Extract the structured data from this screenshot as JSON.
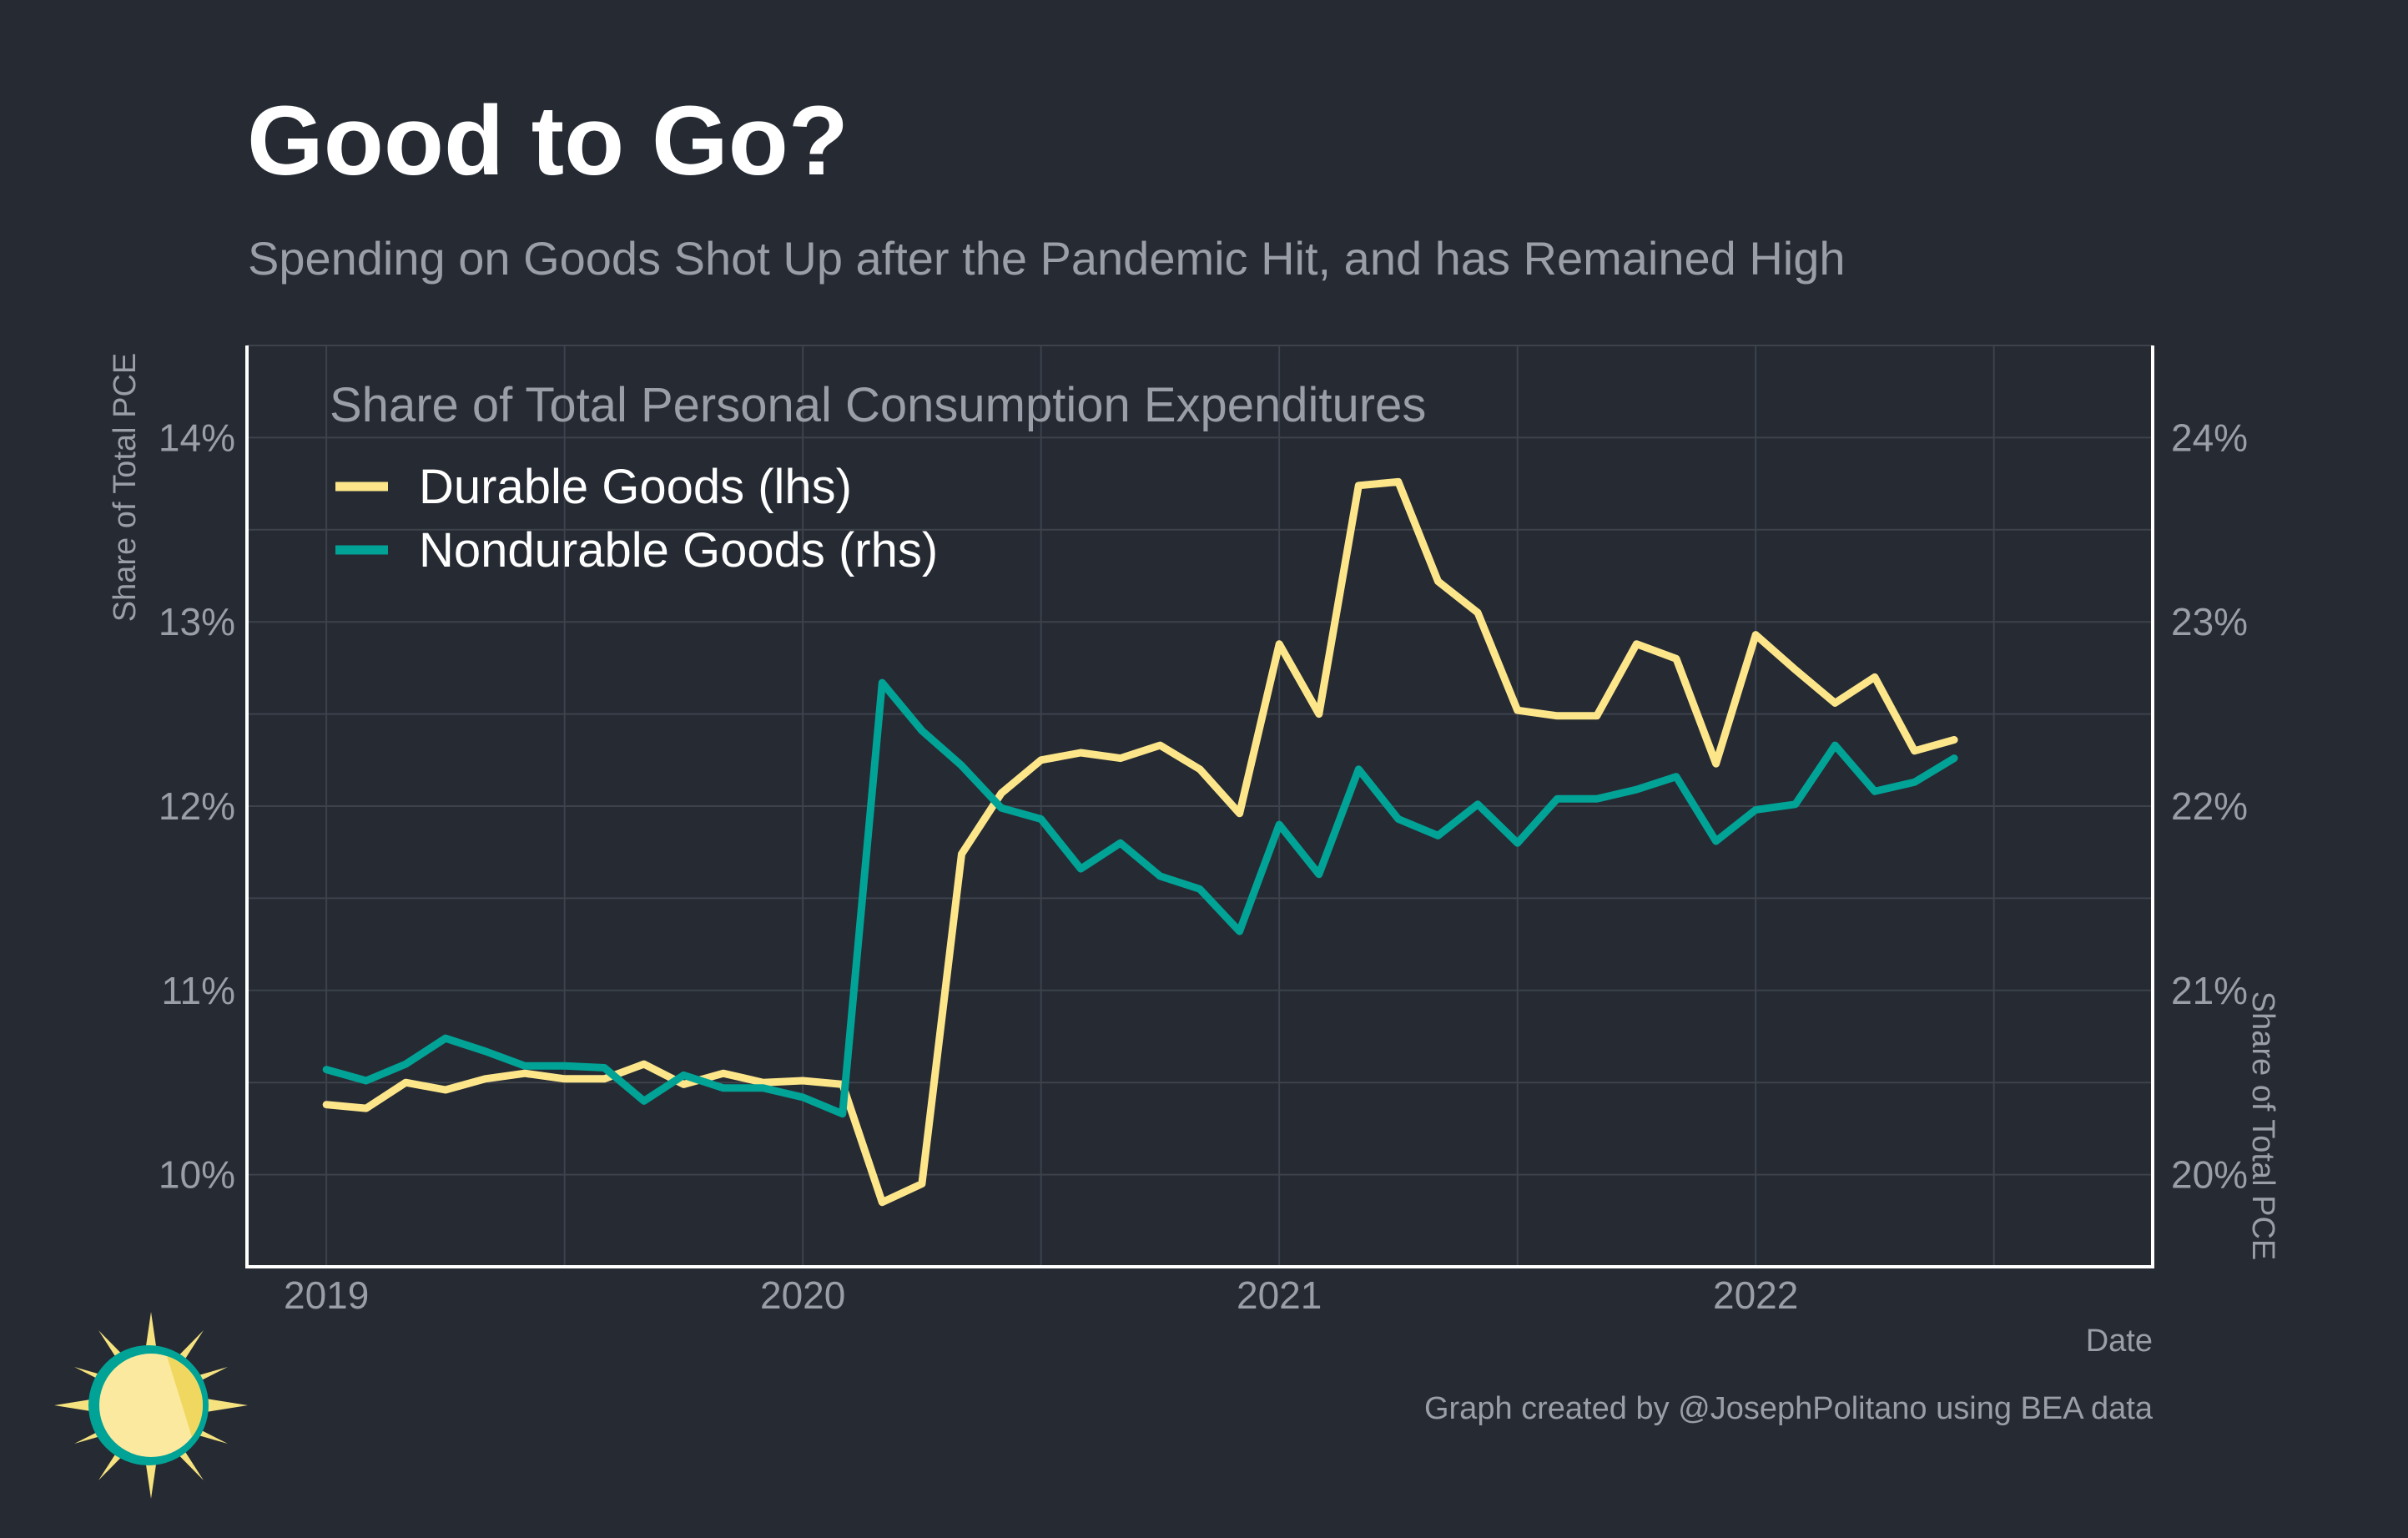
{
  "title": "Good to Go?",
  "subtitle": "Spending on Goods Shot Up after the Pandemic Hit, and has Remained High",
  "caption": "Graph created by @JosephPolitano using BEA data",
  "colors": {
    "background": "#252a33",
    "grid": "#3d424b",
    "axis": "#ffffff",
    "text_muted": "#9a9ea6",
    "durable": "#fde68a",
    "nondurable": "#00a396",
    "logo_sun": "#f6e27f",
    "logo_ring": "#00a396"
  },
  "logo_icon": "sun-logo-icon",
  "chart_data": {
    "type": "line",
    "xlabel": "Date",
    "ylabel_left": "Share of Total PCE",
    "ylabel_right": "Share of Total PCE",
    "legend_title": "Share of Total Personal Consumption Expenditures",
    "legend_placement": "top-left",
    "grid": true,
    "x_ticks": [
      "2019",
      "2020",
      "2021",
      "2022"
    ],
    "y_left_ticks": [
      "10%",
      "11%",
      "12%",
      "13%",
      "14%"
    ],
    "y_right_ticks": [
      "20%",
      "21%",
      "22%",
      "23%",
      "24%"
    ],
    "y_left_range": [
      9.5,
      14.5
    ],
    "y_right_range": [
      19.5,
      24.5
    ],
    "x_range": [
      "2018-11",
      "2022-11"
    ],
    "dates": [
      "2019-01",
      "2019-02",
      "2019-03",
      "2019-04",
      "2019-05",
      "2019-06",
      "2019-07",
      "2019-08",
      "2019-09",
      "2019-10",
      "2019-11",
      "2019-12",
      "2020-01",
      "2020-02",
      "2020-03",
      "2020-04",
      "2020-05",
      "2020-06",
      "2020-07",
      "2020-08",
      "2020-09",
      "2020-10",
      "2020-11",
      "2020-12",
      "2021-01",
      "2021-02",
      "2021-03",
      "2021-04",
      "2021-05",
      "2021-06",
      "2021-07",
      "2021-08",
      "2021-09",
      "2021-10",
      "2021-11",
      "2021-12",
      "2022-01",
      "2022-02",
      "2022-03",
      "2022-04",
      "2022-05",
      "2022-06"
    ],
    "series": [
      {
        "name": "Durable Goods (lhs)",
        "axis": "left",
        "unit": "%",
        "values": [
          10.38,
          10.36,
          10.5,
          10.46,
          10.52,
          10.55,
          10.52,
          10.52,
          10.6,
          10.49,
          10.55,
          10.5,
          10.51,
          10.49,
          9.85,
          9.95,
          11.74,
          12.07,
          12.25,
          12.29,
          12.26,
          12.33,
          12.2,
          11.96,
          12.88,
          12.5,
          13.74,
          13.76,
          13.22,
          13.05,
          12.52,
          12.49,
          12.49,
          12.88,
          12.8,
          12.23,
          12.93,
          12.74,
          12.56,
          12.7,
          12.3,
          12.36
        ]
      },
      {
        "name": "Nondurable Goods (rhs)",
        "axis": "right",
        "unit": "%",
        "values": [
          20.57,
          20.51,
          20.6,
          20.74,
          20.67,
          20.59,
          20.59,
          20.58,
          20.4,
          20.54,
          20.47,
          20.47,
          20.42,
          20.33,
          22.67,
          22.41,
          22.22,
          21.99,
          21.93,
          21.66,
          21.8,
          21.62,
          21.55,
          21.32,
          21.9,
          21.63,
          22.2,
          21.93,
          21.84,
          22.01,
          21.8,
          22.04,
          22.04,
          22.09,
          22.16,
          21.81,
          21.98,
          22.01,
          22.33,
          22.08,
          22.13,
          22.26
        ]
      }
    ]
  }
}
